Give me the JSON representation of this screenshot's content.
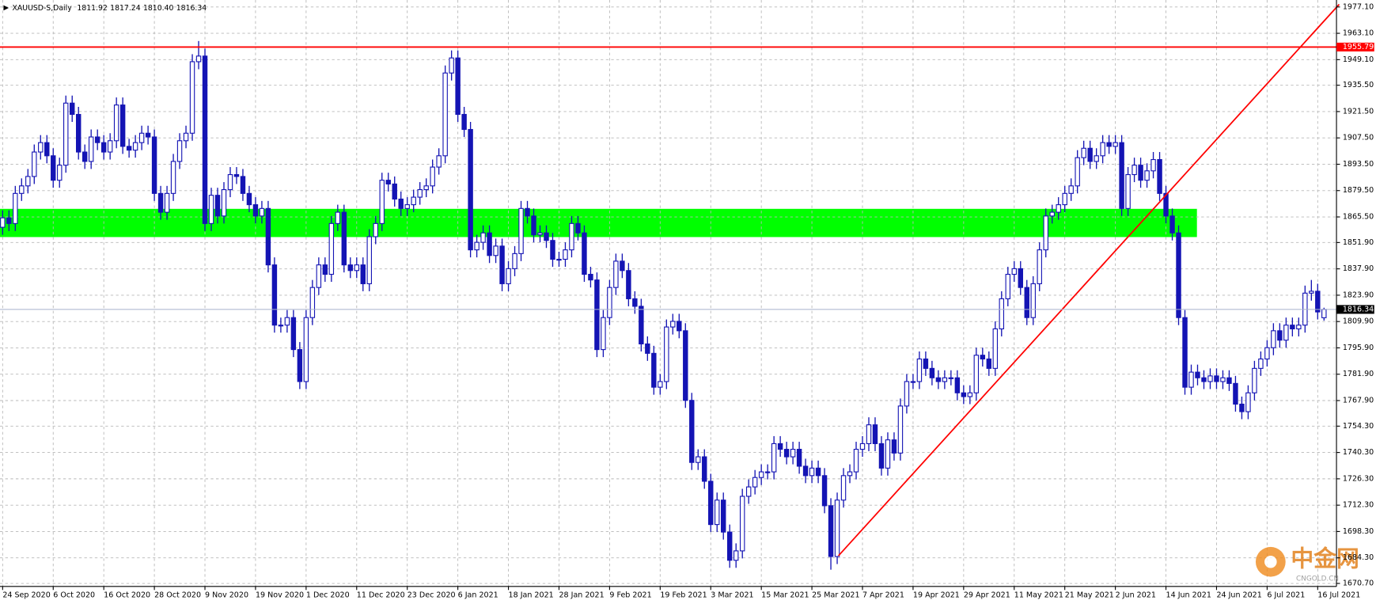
{
  "header": {
    "symbol": "XAUUSD-S,Daily",
    "ohlc_labels": [
      "1811.92",
      "1817.24",
      "1810.40",
      "1816.34"
    ]
  },
  "watermark": {
    "logo": "中金网",
    "site": "CNGOLD.CN"
  },
  "chart_data": {
    "type": "candlestick",
    "candle_color": "#1414b4",
    "ylim": [
      1669.1,
      1980.8
    ],
    "yticks": [
      {
        "value": 1977.1,
        "label": "1977.10"
      },
      {
        "value": 1963.1,
        "label": "1963.10"
      },
      {
        "value": 1949.1,
        "label": "1949.10"
      },
      {
        "value": 1935.5,
        "label": "1935.50"
      },
      {
        "value": 1921.5,
        "label": "1921.50"
      },
      {
        "value": 1907.5,
        "label": "1907.50"
      },
      {
        "value": 1893.5,
        "label": "1893.50"
      },
      {
        "value": 1879.5,
        "label": "1879.50"
      },
      {
        "value": 1865.5,
        "label": "1865.50"
      },
      {
        "value": 1851.9,
        "label": "1851.90"
      },
      {
        "value": 1837.9,
        "label": "1837.90"
      },
      {
        "value": 1823.9,
        "label": "1823.90"
      },
      {
        "value": 1809.9,
        "label": "1809.90"
      },
      {
        "value": 1795.9,
        "label": "1795.90"
      },
      {
        "value": 1781.9,
        "label": "1781.90"
      },
      {
        "value": 1767.9,
        "label": "1767.90"
      },
      {
        "value": 1754.3,
        "label": "1754.30"
      },
      {
        "value": 1740.3,
        "label": "1740.30"
      },
      {
        "value": 1726.3,
        "label": "1726.30"
      },
      {
        "value": 1712.3,
        "label": "1712.30"
      },
      {
        "value": 1698.3,
        "label": "1698.30"
      },
      {
        "value": 1684.3,
        "label": "1684.30"
      },
      {
        "value": 1670.7,
        "label": "1670.70"
      }
    ],
    "grid": true,
    "x_labels": [
      "24 Sep 2020",
      "6 Oct 2020",
      "16 Oct 2020",
      "28 Oct 2020",
      "9 Nov 2020",
      "19 Nov 2020",
      "1 Dec 2020",
      "11 Dec 2020",
      "23 Dec 2020",
      "6 Jan 2021",
      "18 Jan 2021",
      "28 Jan 2021",
      "9 Feb 2021",
      "19 Feb 2021",
      "3 Mar 2021",
      "15 Mar 2021",
      "25 Mar 2021",
      "7 Apr 2021",
      "19 Apr 2021",
      "29 Apr 2021",
      "11 May 2021",
      "21 May 2021",
      "2 Jun 2021",
      "14 Jun 2021",
      "24 Jun 2021",
      "6 Jul 2021",
      "16 Jul 2021"
    ],
    "open": [
      1860,
      1865,
      1862,
      1878,
      1882,
      1887,
      1900,
      1905,
      1898,
      1885,
      1893,
      1926,
      1920,
      1900,
      1895,
      1908,
      1905,
      1900,
      1906,
      1925,
      1903,
      1901,
      1905,
      1910,
      1908,
      1878,
      1868,
      1878,
      1895,
      1906,
      1910,
      1948,
      1951,
      1862,
      1877,
      1866,
      1880,
      1888,
      1887,
      1878,
      1872,
      1866,
      1870,
      1840,
      1808,
      1808,
      1812,
      1795,
      1778,
      1812,
      1828,
      1840,
      1835,
      1862,
      1868,
      1840,
      1837,
      1840,
      1830,
      1855,
      1862,
      1885,
      1883,
      1875,
      1870,
      1872,
      1876,
      1880,
      1882,
      1892,
      1898,
      1942,
      1950,
      1920,
      1912,
      1848,
      1852,
      1857,
      1845,
      1850,
      1830,
      1838,
      1846,
      1870,
      1866,
      1856,
      1857,
      1853,
      1843,
      1843,
      1848,
      1862,
      1857,
      1835,
      1832,
      1795,
      1812,
      1828,
      1842,
      1837,
      1822,
      1818,
      1798,
      1793,
      1775,
      1778,
      1807,
      1810,
      1805,
      1768,
      1735,
      1738,
      1725,
      1702,
      1715,
      1698,
      1683,
      1688,
      1717,
      1722,
      1727,
      1730,
      1730,
      1745,
      1742,
      1738,
      1742,
      1733,
      1728,
      1732,
      1728,
      1712,
      1685,
      1715,
      1728,
      1730,
      1742,
      1745,
      1755,
      1745,
      1732,
      1747,
      1740,
      1765,
      1778,
      1778,
      1790,
      1785,
      1780,
      1778,
      1780,
      1780,
      1772,
      1770,
      1772,
      1792,
      1790,
      1785,
      1806,
      1822,
      1835,
      1838,
      1828,
      1812,
      1830,
      1848,
      1866,
      1868,
      1872,
      1878,
      1882,
      1897,
      1902,
      1895,
      1898,
      1905,
      1903,
      1905,
      1870,
      1888,
      1893,
      1885,
      1890,
      1896,
      1878,
      1866,
      1857,
      1812,
      1775,
      1783,
      1780,
      1778,
      1781,
      1778,
      1780,
      1777,
      1766,
      1762,
      1772,
      1785,
      1790,
      1796,
      1805,
      1800,
      1808,
      1806,
      1808,
      1825,
      1826,
      1811.92
    ],
    "high": [
      1869,
      1869,
      1882,
      1886,
      1891,
      1904,
      1909,
      1909,
      1902,
      1897,
      1930,
      1930,
      1924,
      1904,
      1912,
      1912,
      1909,
      1910,
      1929,
      1929,
      1907,
      1909,
      1914,
      1914,
      1912,
      1882,
      1882,
      1899,
      1910,
      1914,
      1952,
      1959,
      1955,
      1881,
      1881,
      1884,
      1892,
      1892,
      1891,
      1882,
      1876,
      1874,
      1874,
      1844,
      1812,
      1816,
      1816,
      1799,
      1816,
      1832,
      1844,
      1844,
      1866,
      1872,
      1872,
      1844,
      1844,
      1844,
      1859,
      1866,
      1889,
      1889,
      1887,
      1879,
      1876,
      1880,
      1884,
      1886,
      1896,
      1902,
      1946,
      1954,
      1954,
      1924,
      1916,
      1856,
      1861,
      1861,
      1854,
      1854,
      1842,
      1850,
      1874,
      1874,
      1870,
      1861,
      1861,
      1857,
      1847,
      1852,
      1866,
      1866,
      1861,
      1839,
      1836,
      1816,
      1832,
      1846,
      1846,
      1841,
      1826,
      1822,
      1802,
      1797,
      1782,
      1811,
      1814,
      1814,
      1809,
      1772,
      1742,
      1742,
      1729,
      1719,
      1719,
      1702,
      1692,
      1721,
      1726,
      1731,
      1734,
      1734,
      1749,
      1749,
      1746,
      1746,
      1746,
      1737,
      1736,
      1736,
      1732,
      1716,
      1719,
      1732,
      1734,
      1746,
      1749,
      1759,
      1759,
      1749,
      1751,
      1751,
      1769,
      1782,
      1782,
      1794,
      1794,
      1789,
      1784,
      1784,
      1784,
      1784,
      1776,
      1776,
      1796,
      1796,
      1794,
      1810,
      1826,
      1839,
      1842,
      1842,
      1832,
      1834,
      1852,
      1870,
      1872,
      1876,
      1882,
      1886,
      1901,
      1906,
      1906,
      1902,
      1909,
      1909,
      1909,
      1909,
      1892,
      1897,
      1897,
      1894,
      1900,
      1900,
      1882,
      1870,
      1861,
      1816,
      1787,
      1787,
      1784,
      1785,
      1785,
      1784,
      1784,
      1781,
      1770,
      1776,
      1789,
      1794,
      1800,
      1809,
      1809,
      1812,
      1812,
      1812,
      1829,
      1832,
      1830,
      1817.24
    ],
    "low": [
      1856,
      1858,
      1858,
      1874,
      1878,
      1883,
      1896,
      1894,
      1881,
      1881,
      1889,
      1916,
      1896,
      1891,
      1891,
      1901,
      1896,
      1896,
      1902,
      1899,
      1897,
      1897,
      1901,
      1904,
      1874,
      1864,
      1864,
      1874,
      1891,
      1902,
      1906,
      1944,
      1858,
      1858,
      1862,
      1862,
      1876,
      1883,
      1874,
      1868,
      1862,
      1862,
      1836,
      1804,
      1804,
      1804,
      1791,
      1774,
      1774,
      1808,
      1824,
      1831,
      1831,
      1858,
      1836,
      1833,
      1833,
      1826,
      1826,
      1851,
      1858,
      1879,
      1871,
      1866,
      1866,
      1868,
      1872,
      1876,
      1878,
      1888,
      1894,
      1938,
      1916,
      1908,
      1844,
      1844,
      1848,
      1841,
      1841,
      1826,
      1826,
      1834,
      1842,
      1862,
      1852,
      1852,
      1849,
      1839,
      1839,
      1839,
      1844,
      1853,
      1831,
      1828,
      1791,
      1791,
      1808,
      1824,
      1833,
      1818,
      1814,
      1794,
      1789,
      1771,
      1771,
      1774,
      1803,
      1801,
      1764,
      1731,
      1731,
      1721,
      1698,
      1698,
      1694,
      1679,
      1679,
      1684,
      1713,
      1718,
      1723,
      1726,
      1726,
      1738,
      1734,
      1734,
      1729,
      1724,
      1724,
      1724,
      1708,
      1678,
      1681,
      1711,
      1724,
      1726,
      1738,
      1741,
      1741,
      1728,
      1728,
      1736,
      1736,
      1761,
      1774,
      1774,
      1781,
      1776,
      1774,
      1774,
      1776,
      1768,
      1766,
      1766,
      1768,
      1786,
      1781,
      1781,
      1802,
      1818,
      1831,
      1824,
      1808,
      1808,
      1826,
      1844,
      1862,
      1864,
      1868,
      1874,
      1878,
      1893,
      1891,
      1891,
      1894,
      1899,
      1899,
      1866,
      1866,
      1884,
      1881,
      1881,
      1886,
      1874,
      1862,
      1853,
      1808,
      1771,
      1771,
      1776,
      1774,
      1774,
      1774,
      1774,
      1773,
      1762,
      1758,
      1758,
      1768,
      1781,
      1786,
      1792,
      1796,
      1796,
      1802,
      1802,
      1804,
      1821,
      1811,
      1810.4
    ],
    "close": [
      1865,
      1862,
      1878,
      1882,
      1887,
      1900,
      1905,
      1898,
      1885,
      1893,
      1926,
      1920,
      1900,
      1895,
      1908,
      1905,
      1900,
      1906,
      1925,
      1903,
      1901,
      1905,
      1910,
      1908,
      1878,
      1868,
      1878,
      1895,
      1906,
      1910,
      1948,
      1951,
      1862,
      1877,
      1866,
      1880,
      1888,
      1887,
      1878,
      1872,
      1866,
      1870,
      1840,
      1808,
      1808,
      1812,
      1795,
      1778,
      1812,
      1828,
      1840,
      1835,
      1862,
      1868,
      1840,
      1837,
      1840,
      1830,
      1855,
      1862,
      1885,
      1883,
      1875,
      1870,
      1872,
      1876,
      1880,
      1882,
      1892,
      1898,
      1942,
      1950,
      1920,
      1912,
      1848,
      1852,
      1857,
      1845,
      1850,
      1830,
      1838,
      1846,
      1870,
      1866,
      1856,
      1857,
      1853,
      1843,
      1843,
      1848,
      1862,
      1857,
      1835,
      1832,
      1795,
      1812,
      1828,
      1842,
      1837,
      1822,
      1818,
      1798,
      1793,
      1775,
      1778,
      1807,
      1810,
      1805,
      1768,
      1735,
      1738,
      1725,
      1702,
      1715,
      1698,
      1683,
      1688,
      1717,
      1722,
      1727,
      1730,
      1730,
      1745,
      1742,
      1738,
      1742,
      1733,
      1728,
      1732,
      1728,
      1712,
      1685,
      1715,
      1728,
      1730,
      1742,
      1745,
      1755,
      1745,
      1732,
      1747,
      1740,
      1765,
      1778,
      1778,
      1790,
      1785,
      1780,
      1778,
      1780,
      1780,
      1772,
      1770,
      1772,
      1792,
      1790,
      1785,
      1806,
      1822,
      1835,
      1838,
      1828,
      1812,
      1830,
      1848,
      1866,
      1868,
      1872,
      1878,
      1882,
      1897,
      1902,
      1895,
      1898,
      1905,
      1903,
      1905,
      1870,
      1888,
      1893,
      1885,
      1890,
      1896,
      1878,
      1866,
      1857,
      1812,
      1775,
      1783,
      1780,
      1778,
      1781,
      1778,
      1780,
      1777,
      1766,
      1762,
      1772,
      1785,
      1790,
      1796,
      1805,
      1800,
      1808,
      1806,
      1808,
      1825,
      1826,
      1815,
      1816.34
    ],
    "hline": {
      "value": 1955.79,
      "label": "1955.79",
      "color": "#ff0000"
    },
    "price_line": {
      "value": 1816.34,
      "label": "1816.34",
      "color": "#a8b0cc"
    },
    "zone": {
      "x": [
        -0.5,
        188.9
      ],
      "y": [
        1854.8,
        1869.8
      ],
      "color": "#00ff00"
    },
    "trendline": {
      "x": [
        132.2,
        211.4
      ],
      "y": [
        1685.4,
        1978.5
      ],
      "color": "#ff0000"
    }
  }
}
